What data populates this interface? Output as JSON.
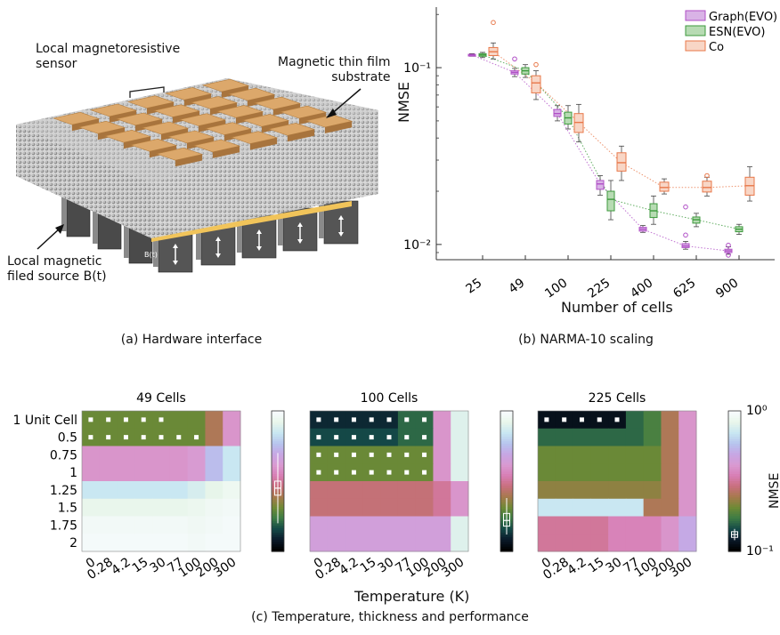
{
  "panel_a": {
    "labels": {
      "sensor": "Local magnetoresistive\nsensor",
      "substrate": "Magnetic thin film\nsubstrate",
      "source": "Local magnetic\nfiled source B(t)",
      "bt": "B(t)"
    },
    "caption": "(a) Hardware interface",
    "colors": {
      "pad": "#d19a5c",
      "pad_top": "#dca86b",
      "film": "#bdbdbd",
      "gold": "#f1c45a",
      "pillar": "#5a5a5a"
    }
  },
  "panel_b_caption": "(b) NARMA-10 scaling",
  "panel_c_caption": "(c) Temperature, thickness and performance",
  "chart_data": [
    {
      "type": "box",
      "ylabel": "NMSE",
      "xlabel": "Number of cells",
      "yscale": "log",
      "ylim": [
        0.0082,
        0.22
      ],
      "y_ticks": [
        "10⁻¹",
        "10⁻²"
      ],
      "y_tick_values": [
        0.1,
        0.01
      ],
      "categories": [
        "25",
        "49",
        "100",
        "225",
        "400",
        "625",
        "900"
      ],
      "legend_position": "top-right",
      "series": [
        {
          "name": "Graph(EVO)",
          "color": "#b04fc6",
          "fill": "#d9b3e6",
          "medians": [
            0.118,
            0.094,
            0.055,
            0.022,
            0.0122,
            0.0098,
            0.0092
          ],
          "q1": [
            0.117,
            0.092,
            0.053,
            0.0205,
            0.0119,
            0.0096,
            0.009
          ],
          "q3": [
            0.119,
            0.096,
            0.058,
            0.023,
            0.0125,
            0.0101,
            0.0094
          ],
          "lo": [
            0.116,
            0.089,
            0.05,
            0.019,
            0.0117,
            0.0094,
            0.0088
          ],
          "hi": [
            0.12,
            0.099,
            0.061,
            0.0245,
            0.0128,
            0.0104,
            0.0097
          ],
          "outliers": [
            [
              1,
              0.112
            ],
            [
              5,
              0.0163
            ],
            [
              5,
              0.0113
            ],
            [
              6,
              0.0087
            ],
            [
              6,
              0.0099
            ]
          ]
        },
        {
          "name": "ESN(EVO)",
          "color": "#3c9a3c",
          "fill": "#b7dbb3",
          "medians": [
            0.118,
            0.096,
            0.052,
            0.018,
            0.0155,
            0.0138,
            0.0122
          ],
          "q1": [
            0.116,
            0.092,
            0.048,
            0.0155,
            0.0142,
            0.0132,
            0.0118
          ],
          "q3": [
            0.12,
            0.1,
            0.056,
            0.02,
            0.017,
            0.0143,
            0.0126
          ],
          "lo": [
            0.114,
            0.088,
            0.045,
            0.0138,
            0.013,
            0.0126,
            0.0114
          ],
          "hi": [
            0.122,
            0.104,
            0.061,
            0.023,
            0.0188,
            0.015,
            0.013
          ],
          "outliers": []
        },
        {
          "name": "Co",
          "color": "#e8784a",
          "fill": "#f8d6c6",
          "medians": [
            0.123,
            0.082,
            0.049,
            0.029,
            0.021,
            0.021,
            0.0215
          ],
          "q1": [
            0.117,
            0.072,
            0.043,
            0.026,
            0.02,
            0.0198,
            0.019
          ],
          "q3": [
            0.13,
            0.09,
            0.055,
            0.033,
            0.0225,
            0.0228,
            0.024
          ],
          "lo": [
            0.112,
            0.066,
            0.038,
            0.023,
            0.0193,
            0.0188,
            0.0176
          ],
          "hi": [
            0.138,
            0.096,
            0.062,
            0.036,
            0.0235,
            0.024,
            0.0275
          ],
          "outliers": [
            [
              0,
              0.18
            ],
            [
              1,
              0.104
            ],
            [
              5,
              0.0245
            ]
          ]
        }
      ]
    },
    {
      "type": "heatmap",
      "titles": [
        "49 Cells",
        "100 Cells",
        "225 Cells"
      ],
      "xlabel": "Temperature (K)",
      "x_categories": [
        "0",
        "0.28",
        "4.2",
        "15",
        "30",
        "77",
        "100",
        "200",
        "300"
      ],
      "y_categories": [
        "1 Unit Cell",
        "0.5",
        "0.75",
        "1",
        "1.25",
        "1.5",
        "1.75",
        "2"
      ],
      "colorbar_label": "NMSE",
      "colorbar_range": [
        "10⁰",
        "10⁻¹"
      ],
      "colormap": [
        "#f8fbff",
        "#e8f6ea",
        "#c7e6f2",
        "#b7c4ee",
        "#c7a6e4",
        "#d99ad1",
        "#d87fb5",
        "#c96f7e",
        "#a77a4d",
        "#6f8a35",
        "#3d7c45",
        "#154a48",
        "#0a1a2a",
        "#000000"
      ],
      "panels": [
        {
          "values": [
            [
              0.3,
              0.3,
              0.3,
              0.3,
              0.3,
              0.3,
              0.3,
              0.4,
              0.6
            ],
            [
              0.3,
              0.3,
              0.3,
              0.3,
              0.3,
              0.3,
              0.3,
              0.4,
              0.6
            ],
            [
              0.6,
              0.6,
              0.6,
              0.6,
              0.6,
              0.6,
              0.62,
              0.75,
              0.85
            ],
            [
              0.6,
              0.6,
              0.6,
              0.6,
              0.6,
              0.6,
              0.62,
              0.75,
              0.85
            ],
            [
              0.85,
              0.85,
              0.85,
              0.85,
              0.85,
              0.85,
              0.88,
              0.92,
              0.95
            ],
            [
              0.93,
              0.93,
              0.93,
              0.93,
              0.93,
              0.93,
              0.94,
              0.96,
              0.97
            ],
            [
              0.97,
              0.97,
              0.97,
              0.97,
              0.97,
              0.97,
              0.96,
              0.97,
              0.98
            ],
            [
              0.98,
              0.98,
              0.98,
              0.98,
              0.98,
              0.98,
              0.97,
              0.98,
              0.98
            ]
          ],
          "markers": [
            [
              0,
              0
            ],
            [
              0,
              1
            ],
            [
              0,
              2
            ],
            [
              0,
              3
            ],
            [
              0,
              4
            ],
            [
              1,
              0
            ],
            [
              1,
              1
            ],
            [
              1,
              2
            ],
            [
              1,
              3
            ],
            [
              1,
              4
            ],
            [
              1,
              5
            ],
            [
              1,
              6
            ]
          ],
          "colorbar_box": {
            "median": 0.55,
            "q1": 0.5,
            "q3": 0.6,
            "lo": 0.3,
            "hi": 0.8
          }
        },
        {
          "values": [
            [
              0.1,
              0.1,
              0.1,
              0.1,
              0.1,
              0.2,
              0.2,
              0.6,
              0.9
            ],
            [
              0.15,
              0.15,
              0.15,
              0.15,
              0.15,
              0.2,
              0.2,
              0.6,
              0.9
            ],
            [
              0.3,
              0.3,
              0.3,
              0.3,
              0.3,
              0.3,
              0.3,
              0.6,
              0.9
            ],
            [
              0.3,
              0.3,
              0.3,
              0.3,
              0.3,
              0.3,
              0.3,
              0.6,
              0.9
            ],
            [
              0.45,
              0.45,
              0.45,
              0.45,
              0.45,
              0.45,
              0.45,
              0.5,
              0.6
            ],
            [
              0.45,
              0.45,
              0.45,
              0.45,
              0.45,
              0.45,
              0.45,
              0.5,
              0.6
            ],
            [
              0.65,
              0.65,
              0.65,
              0.65,
              0.65,
              0.65,
              0.65,
              0.65,
              0.9
            ],
            [
              0.65,
              0.65,
              0.65,
              0.65,
              0.65,
              0.65,
              0.65,
              0.65,
              0.9
            ]
          ],
          "markers": [
            [
              0,
              0
            ],
            [
              0,
              1
            ],
            [
              0,
              2
            ],
            [
              0,
              3
            ],
            [
              0,
              4
            ],
            [
              0,
              5
            ],
            [
              0,
              6
            ],
            [
              1,
              0
            ],
            [
              1,
              1
            ],
            [
              1,
              2
            ],
            [
              1,
              3
            ],
            [
              1,
              4
            ],
            [
              1,
              5
            ],
            [
              1,
              6
            ],
            [
              2,
              0
            ],
            [
              2,
              1
            ],
            [
              2,
              2
            ],
            [
              2,
              3
            ],
            [
              2,
              4
            ],
            [
              2,
              5
            ],
            [
              2,
              6
            ],
            [
              3,
              0
            ],
            [
              3,
              1
            ],
            [
              3,
              2
            ],
            [
              3,
              3
            ],
            [
              3,
              4
            ],
            [
              3,
              5
            ],
            [
              3,
              6
            ]
          ],
          "colorbar_box": {
            "median": 0.78,
            "q1": 0.73,
            "q3": 0.82,
            "lo": 0.62,
            "hi": 0.88
          }
        },
        {
          "values": [
            [
              0.05,
              0.05,
              0.05,
              0.05,
              0.05,
              0.2,
              0.25,
              0.4,
              0.6
            ],
            [
              0.2,
              0.2,
              0.2,
              0.2,
              0.2,
              0.2,
              0.25,
              0.4,
              0.6
            ],
            [
              0.3,
              0.3,
              0.3,
              0.3,
              0.3,
              0.3,
              0.3,
              0.4,
              0.6
            ],
            [
              0.3,
              0.3,
              0.3,
              0.3,
              0.3,
              0.3,
              0.3,
              0.4,
              0.6
            ],
            [
              0.35,
              0.35,
              0.35,
              0.35,
              0.35,
              0.35,
              0.35,
              0.4,
              0.6
            ],
            [
              0.85,
              0.85,
              0.85,
              0.85,
              0.85,
              0.85,
              0.4,
              0.4,
              0.6
            ],
            [
              0.5,
              0.5,
              0.5,
              0.5,
              0.55,
              0.55,
              0.55,
              0.6,
              0.7
            ],
            [
              0.5,
              0.5,
              0.5,
              0.5,
              0.55,
              0.55,
              0.55,
              0.6,
              0.7
            ]
          ],
          "markers": [
            [
              0,
              0
            ],
            [
              0,
              1
            ],
            [
              0,
              2
            ],
            [
              0,
              3
            ],
            [
              0,
              4
            ]
          ],
          "colorbar_box": {
            "median": 0.88,
            "q1": 0.86,
            "q3": 0.9,
            "lo": 0.84,
            "hi": 0.92
          }
        }
      ]
    }
  ]
}
